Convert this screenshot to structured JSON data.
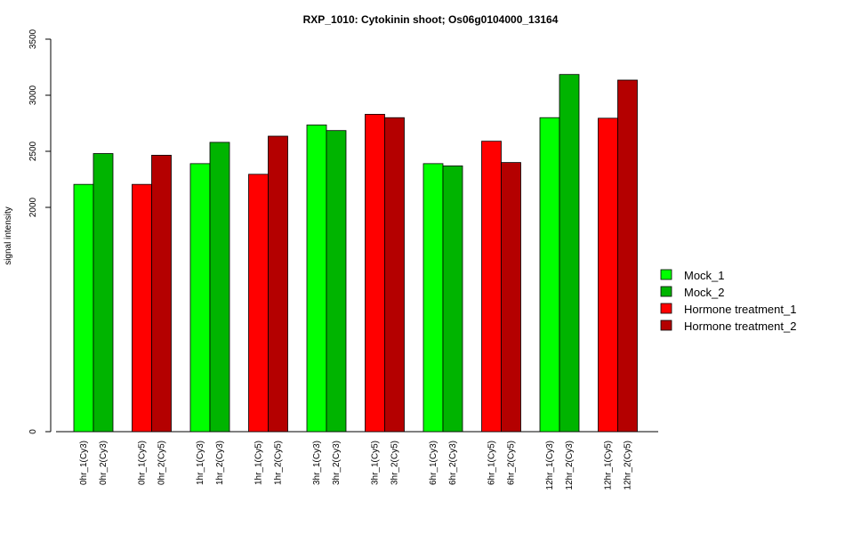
{
  "chart_data": {
    "type": "bar",
    "title": "RXP_1010: Cytokinin shoot; Os06g0104000_13164",
    "xlabel": "",
    "ylabel": "signal intensity",
    "ylim": [
      0,
      3500
    ],
    "y_ticks": [
      0,
      2000,
      2500,
      3000,
      3500
    ],
    "y_tick_labels": [
      "0",
      "2000",
      "2500",
      "3000",
      "3500"
    ],
    "grid": false,
    "legend_position": "right",
    "groups": [
      {
        "bars": [
          {
            "label": "0hr_1(Cy3)",
            "value": 2205,
            "color": "#00ff00"
          },
          {
            "label": "0hr_2(Cy3)",
            "value": 2480,
            "color": "#00b400"
          }
        ]
      },
      {
        "bars": [
          {
            "label": "0hr_1(Cy5)",
            "value": 2205,
            "color": "#ff0000"
          },
          {
            "label": "0hr_2(Cy5)",
            "value": 2465,
            "color": "#b40000"
          }
        ]
      },
      {
        "bars": [
          {
            "label": "1hr_1(Cy3)",
            "value": 2390,
            "color": "#00ff00"
          },
          {
            "label": "1hr_2(Cy3)",
            "value": 2580,
            "color": "#00b400"
          }
        ]
      },
      {
        "bars": [
          {
            "label": "1hr_1(Cy5)",
            "value": 2295,
            "color": "#ff0000"
          },
          {
            "label": "1hr_2(Cy5)",
            "value": 2635,
            "color": "#b40000"
          }
        ]
      },
      {
        "bars": [
          {
            "label": "3hr_1(Cy3)",
            "value": 2735,
            "color": "#00ff00"
          },
          {
            "label": "3hr_2(Cy3)",
            "value": 2685,
            "color": "#00b400"
          }
        ]
      },
      {
        "bars": [
          {
            "label": "3hr_1(Cy5)",
            "value": 2830,
            "color": "#ff0000"
          },
          {
            "label": "3hr_2(Cy5)",
            "value": 2800,
            "color": "#b40000"
          }
        ]
      },
      {
        "bars": [
          {
            "label": "6hr_1(Cy3)",
            "value": 2390,
            "color": "#00ff00"
          },
          {
            "label": "6hr_2(Cy3)",
            "value": 2370,
            "color": "#00b400"
          }
        ]
      },
      {
        "bars": [
          {
            "label": "6hr_1(Cy5)",
            "value": 2590,
            "color": "#ff0000"
          },
          {
            "label": "6hr_2(Cy5)",
            "value": 2400,
            "color": "#b40000"
          }
        ]
      },
      {
        "bars": [
          {
            "label": "12hr_1(Cy3)",
            "value": 2800,
            "color": "#00ff00"
          },
          {
            "label": "12hr_2(Cy3)",
            "value": 3185,
            "color": "#00b400"
          }
        ]
      },
      {
        "bars": [
          {
            "label": "12hr_1(Cy5)",
            "value": 2795,
            "color": "#ff0000"
          },
          {
            "label": "12hr_2(Cy5)",
            "value": 3135,
            "color": "#b40000"
          }
        ]
      }
    ],
    "legend": [
      {
        "name": "Mock_1",
        "color": "#00ff00"
      },
      {
        "name": "Mock_2",
        "color": "#00b400"
      },
      {
        "name": "Hormone treatment_1",
        "color": "#ff0000"
      },
      {
        "name": "Hormone treatment_2",
        "color": "#b40000"
      }
    ]
  }
}
